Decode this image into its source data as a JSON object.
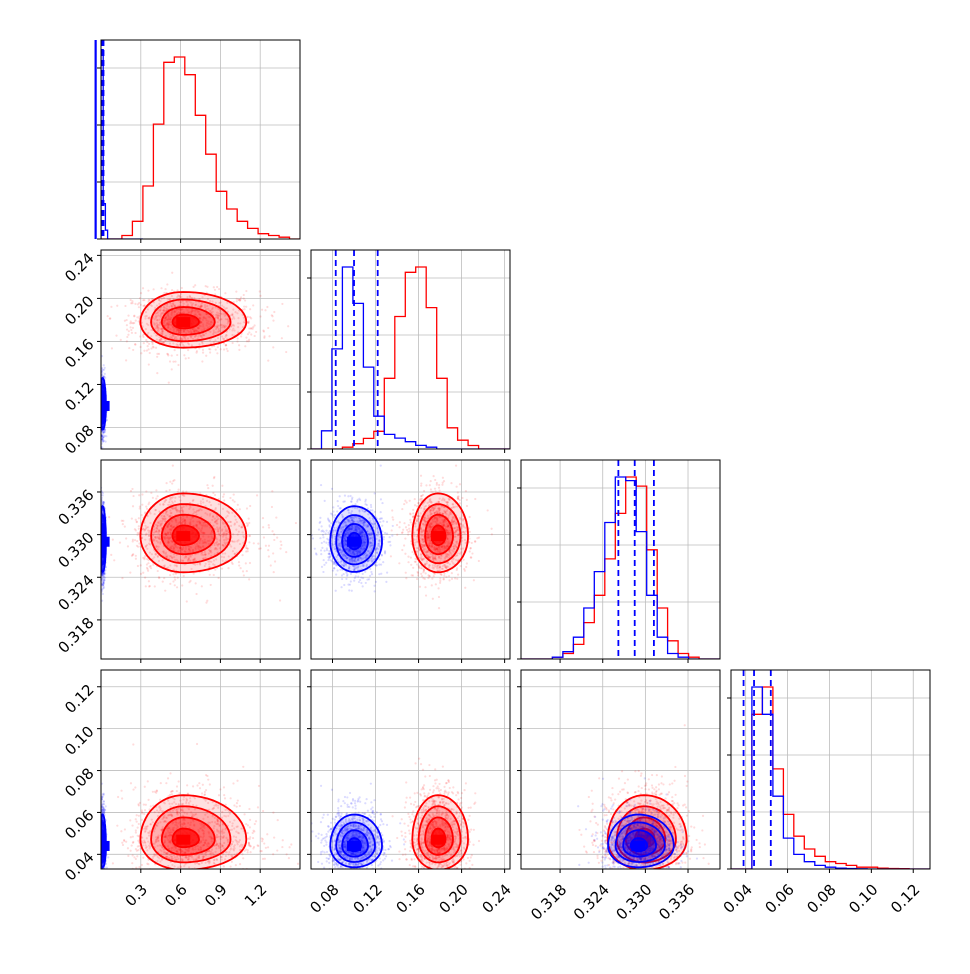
{
  "chart_data": {
    "type": "corner",
    "title": "",
    "params": [
      {
        "range": [
          0.0,
          1.5
        ],
        "ticks": [
          0.3,
          0.6,
          0.9,
          1.2
        ],
        "tick_labels": [
          "0.3",
          "0.6",
          "0.9",
          "1.2"
        ]
      },
      {
        "range": [
          0.06,
          0.245
        ],
        "ticks": [
          0.08,
          0.12,
          0.16,
          0.2,
          0.24
        ],
        "tick_labels": [
          "0.08",
          "0.12",
          "0.16",
          "0.20",
          "0.24"
        ]
      },
      {
        "range": [
          0.3125,
          0.3405
        ],
        "ticks": [
          0.318,
          0.324,
          0.33,
          0.336
        ],
        "tick_labels": [
          "0.318",
          "0.324",
          "0.330",
          "0.336"
        ]
      },
      {
        "range": [
          0.033,
          0.128
        ],
        "ticks": [
          0.04,
          0.06,
          0.08,
          0.1,
          0.12
        ],
        "tick_labels": [
          "0.04",
          "0.06",
          "0.08",
          "0.10",
          "0.12"
        ]
      }
    ],
    "series": [
      {
        "color": "#ff0000",
        "means": [
          0.62,
          0.178,
          0.3298,
          0.047
        ],
        "stds": [
          0.19,
          0.014,
          0.003,
          0.0085
        ],
        "hist": [
          {
            "edges": [
              0.05,
              0.15
            ],
            "counts": [
              0,
              0,
              2,
              10,
              30,
              65,
              100,
              103,
              93,
              70,
              48,
              27,
              17,
              10,
              6,
              3,
              2,
              1,
              0
            ]
          },
          {
            "edges": [
              0.125,
              0.25
            ],
            "counts": [
              0,
              0,
              0,
              1,
              3,
              6,
              10,
              40,
              75,
              100,
              103,
              80,
              40,
              12,
              5,
              2,
              0,
              0,
              0
            ]
          },
          {
            "edges": [
              0.3125,
              0.3405
            ],
            "counts": [
              0,
              0,
              0,
              1,
              3,
              8,
              20,
              35,
              55,
              80,
              100,
              95,
              60,
              28,
              10,
              3,
              1,
              0,
              0
            ]
          },
          {
            "edges": [
              0.033,
              0.128
            ],
            "counts": [
              0,
              0,
              85,
              100,
              55,
              30,
              18,
              11,
              7,
              4,
              3,
              2,
              1,
              1,
              0.5,
              0.3,
              0.2,
              0,
              0
            ]
          }
        ]
      },
      {
        "color": "#0000ff",
        "means": [
          0.012,
          0.1,
          0.329,
          0.044
        ],
        "stds": [
          0.01,
          0.013,
          0.0025,
          0.006
        ],
        "quantiles": [
          [
            0.002,
            0.004,
            0.007,
            0.01,
            0.013,
            0.016,
            0.019
          ],
          [
            0.083,
            0.1,
            0.122
          ],
          [
            0.3262,
            0.3285,
            0.3312
          ],
          [
            0.039,
            0.044,
            0.052
          ]
        ],
        "hist": [
          {
            "edges": [
              0.0,
              0.05
            ],
            "counts": [
              1000,
              20,
              5,
              0,
              0,
              0,
              0,
              0,
              0,
              0,
              0,
              0,
              0,
              0,
              0,
              0,
              0,
              0,
              0
            ]
          },
          {
            "edges": [
              0.05,
              0.245
            ],
            "counts": [
              0,
              10,
              55,
              100,
              80,
              45,
              18,
              8,
              6,
              4,
              2,
              1,
              0,
              0,
              0,
              0,
              0,
              0,
              0
            ]
          },
          {
            "edges": [
              0.3125,
              0.3405
            ],
            "counts": [
              0,
              0,
              0,
              1,
              4,
              12,
              28,
              48,
              75,
              100,
              98,
              70,
              35,
              12,
              3,
              1,
              0,
              0,
              0
            ]
          },
          {
            "edges": [
              0.033,
              0.128
            ],
            "counts": [
              0,
              0,
              100,
              85,
              40,
              17,
              8,
              4,
              2,
              1,
              0.5,
              0.3,
              0.1,
              0,
              0,
              0,
              0,
              0,
              0
            ]
          }
        ]
      }
    ],
    "xlabel": "",
    "ylabel": "",
    "grid": true,
    "legend": "none"
  }
}
